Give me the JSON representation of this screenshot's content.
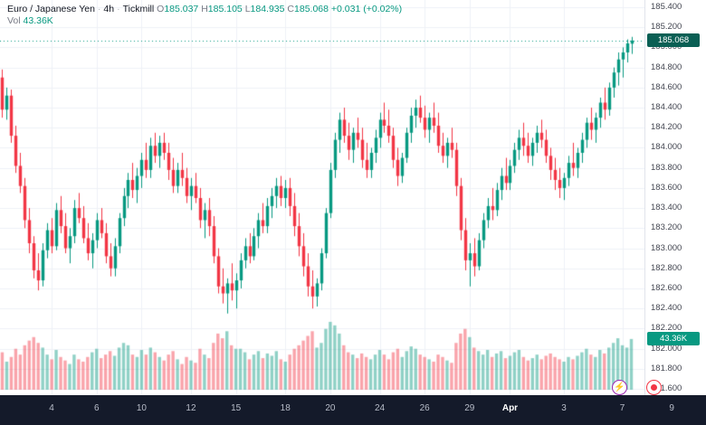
{
  "legend": {
    "symbol": "Euro / Japanese Yen",
    "sep": "·",
    "timeframe": "4h",
    "provider": "Tickmill",
    "ohlc": {
      "o_label": "O",
      "open": "185.037",
      "h_label": "H",
      "high": "185.105",
      "l_label": "L",
      "low": "184.935",
      "c_label": "C",
      "close": "185.068",
      "change": "+0.031 (+0.02%)"
    },
    "volume": {
      "label": "Vol",
      "value": "43.36K"
    }
  },
  "price_axis": {
    "labels": [
      "185.400",
      "185.200",
      "185.000",
      "184.800",
      "184.600",
      "184.400",
      "184.200",
      "184.000",
      "183.800",
      "183.600",
      "183.400",
      "183.200",
      "183.000",
      "182.800",
      "182.600",
      "182.400",
      "182.200",
      "182.000",
      "181.800",
      "181.600"
    ],
    "badge_price": "185.068",
    "badge_volume": "43.36K"
  },
  "time_axis": {
    "ticks": [
      {
        "label": "4",
        "i": 11
      },
      {
        "label": "6",
        "i": 21
      },
      {
        "label": "10",
        "i": 31
      },
      {
        "label": "12",
        "i": 42
      },
      {
        "label": "15",
        "i": 52
      },
      {
        "label": "18",
        "i": 63
      },
      {
        "label": "20",
        "i": 73
      },
      {
        "label": "24",
        "i": 84
      },
      {
        "label": "26",
        "i": 94
      },
      {
        "label": "29",
        "i": 104
      },
      {
        "label": "Apr",
        "i": 113,
        "major": true
      },
      {
        "label": "3",
        "i": 125
      },
      {
        "label": "7",
        "i": 138
      },
      {
        "label": "9",
        "i": 149
      }
    ]
  },
  "icons": {
    "flash_glyph": "⚡"
  },
  "chart_data": {
    "type": "candlestick",
    "title": "Euro / Japanese Yen",
    "timeframe": "4h",
    "provider": "Tickmill",
    "price_axis_range": [
      181.537,
      185.472
    ],
    "grid_step": 0.2,
    "last_price": 185.068,
    "last_volume_k": 43.36,
    "volume_axis_max_k": 68,
    "colors": {
      "up": "#089981",
      "down": "#f23645",
      "vol_up": "rgba(8,153,129,0.45)",
      "vol_down": "rgba(242,54,69,0.45)",
      "grid": "#eef1f7",
      "last_price_line": "#089981",
      "price_badge_bg": "#0a5f54",
      "volume_badge_bg": "#089981"
    },
    "candles_ohlcv": [
      [
        184.7,
        184.78,
        184.3,
        184.38,
        32
      ],
      [
        184.38,
        184.6,
        184.28,
        184.52,
        24
      ],
      [
        184.52,
        184.58,
        184.05,
        184.12,
        28
      ],
      [
        184.12,
        184.22,
        183.75,
        183.82,
        35
      ],
      [
        183.82,
        183.95,
        183.55,
        183.62,
        30
      ],
      [
        183.62,
        183.7,
        183.2,
        183.28,
        38
      ],
      [
        183.28,
        183.4,
        182.95,
        183.05,
        42
      ],
      [
        183.05,
        183.12,
        182.7,
        182.78,
        45
      ],
      [
        182.78,
        182.95,
        182.58,
        182.68,
        40
      ],
      [
        182.68,
        183.05,
        182.62,
        182.98,
        36
      ],
      [
        182.98,
        183.25,
        182.9,
        183.18,
        30
      ],
      [
        183.18,
        183.3,
        182.95,
        183.02,
        26
      ],
      [
        183.02,
        183.45,
        182.98,
        183.38,
        34
      ],
      [
        183.38,
        183.52,
        183.15,
        183.22,
        28
      ],
      [
        183.22,
        183.35,
        182.95,
        183.0,
        25
      ],
      [
        183.0,
        183.2,
        182.85,
        183.12,
        22
      ],
      [
        183.12,
        183.48,
        183.05,
        183.4,
        30
      ],
      [
        183.4,
        183.55,
        183.25,
        183.3,
        26
      ],
      [
        183.3,
        183.42,
        183.05,
        183.1,
        24
      ],
      [
        183.1,
        183.25,
        182.88,
        182.95,
        28
      ],
      [
        182.95,
        183.15,
        182.8,
        183.08,
        32
      ],
      [
        183.08,
        183.35,
        183.0,
        183.28,
        35
      ],
      [
        183.28,
        183.4,
        183.1,
        183.15,
        27
      ],
      [
        183.15,
        183.25,
        182.85,
        182.92,
        30
      ],
      [
        182.92,
        183.05,
        182.72,
        182.8,
        33
      ],
      [
        182.8,
        183.1,
        182.72,
        183.02,
        29
      ],
      [
        183.02,
        183.35,
        182.95,
        183.3,
        36
      ],
      [
        183.3,
        183.6,
        183.22,
        183.52,
        40
      ],
      [
        183.52,
        183.75,
        183.4,
        183.68,
        38
      ],
      [
        183.68,
        183.85,
        183.5,
        183.58,
        30
      ],
      [
        183.58,
        183.8,
        183.45,
        183.72,
        28
      ],
      [
        183.72,
        183.95,
        183.6,
        183.88,
        34
      ],
      [
        183.88,
        184.05,
        183.7,
        183.78,
        30
      ],
      [
        183.78,
        184.1,
        183.7,
        184.02,
        36
      ],
      [
        184.02,
        184.15,
        183.85,
        183.92,
        32
      ],
      [
        183.92,
        184.12,
        183.8,
        184.05,
        28
      ],
      [
        184.05,
        184.15,
        183.88,
        183.95,
        25
      ],
      [
        183.95,
        184.05,
        183.68,
        183.78,
        30
      ],
      [
        183.78,
        183.9,
        183.55,
        183.62,
        33
      ],
      [
        183.62,
        183.85,
        183.55,
        183.78,
        26
      ],
      [
        183.78,
        183.95,
        183.62,
        183.7,
        22
      ],
      [
        183.7,
        183.8,
        183.45,
        183.52,
        28
      ],
      [
        183.52,
        183.7,
        183.38,
        183.62,
        25
      ],
      [
        183.62,
        183.75,
        183.45,
        183.5,
        23
      ],
      [
        183.5,
        183.6,
        183.2,
        183.28,
        35
      ],
      [
        183.28,
        183.45,
        183.1,
        183.38,
        30
      ],
      [
        183.38,
        183.5,
        183.12,
        183.22,
        27
      ],
      [
        183.22,
        183.32,
        182.85,
        182.92,
        40
      ],
      [
        182.92,
        183.0,
        182.55,
        182.62,
        48
      ],
      [
        182.62,
        182.8,
        182.45,
        182.55,
        44
      ],
      [
        182.55,
        182.7,
        182.35,
        182.65,
        50
      ],
      [
        182.65,
        182.85,
        182.48,
        182.58,
        38
      ],
      [
        182.58,
        182.75,
        182.4,
        182.68,
        35
      ],
      [
        182.68,
        182.95,
        182.6,
        182.88,
        35
      ],
      [
        182.88,
        183.1,
        182.8,
        183.02,
        32
      ],
      [
        183.02,
        183.15,
        182.85,
        182.92,
        26
      ],
      [
        182.92,
        183.2,
        182.88,
        183.12,
        30
      ],
      [
        183.12,
        183.35,
        183.0,
        183.28,
        33
      ],
      [
        183.28,
        183.45,
        183.15,
        183.22,
        27
      ],
      [
        183.22,
        183.5,
        183.15,
        183.42,
        31
      ],
      [
        183.42,
        183.6,
        183.3,
        183.52,
        29
      ],
      [
        183.52,
        183.7,
        183.4,
        183.62,
        33
      ],
      [
        183.62,
        183.72,
        183.42,
        183.5,
        26
      ],
      [
        183.5,
        183.68,
        183.4,
        183.6,
        24
      ],
      [
        183.6,
        183.7,
        183.32,
        183.42,
        30
      ],
      [
        183.42,
        183.55,
        183.12,
        183.22,
        35
      ],
      [
        183.22,
        183.35,
        182.92,
        183.02,
        38
      ],
      [
        183.02,
        183.15,
        182.72,
        182.82,
        42
      ],
      [
        182.82,
        182.95,
        182.52,
        182.62,
        46
      ],
      [
        182.62,
        182.78,
        182.4,
        182.52,
        50
      ],
      [
        182.52,
        182.7,
        182.42,
        182.65,
        36
      ],
      [
        182.65,
        183.0,
        182.58,
        182.95,
        40
      ],
      [
        182.95,
        183.4,
        182.9,
        183.35,
        52
      ],
      [
        183.35,
        183.85,
        183.3,
        183.78,
        58
      ],
      [
        183.78,
        184.15,
        183.7,
        184.08,
        55
      ],
      [
        184.08,
        184.35,
        183.95,
        184.28,
        48
      ],
      [
        184.28,
        184.4,
        184.05,
        184.12,
        38
      ],
      [
        184.12,
        184.25,
        183.88,
        183.98,
        32
      ],
      [
        183.98,
        184.2,
        183.85,
        184.15,
        30
      ],
      [
        184.15,
        184.3,
        184.0,
        184.08,
        27
      ],
      [
        184.08,
        184.2,
        183.8,
        183.88,
        31
      ],
      [
        183.88,
        184.05,
        183.7,
        183.78,
        28
      ],
      [
        183.78,
        184.0,
        183.7,
        183.95,
        26
      ],
      [
        183.95,
        184.18,
        183.85,
        184.1,
        30
      ],
      [
        184.1,
        184.35,
        184.0,
        184.28,
        34
      ],
      [
        184.28,
        184.45,
        184.15,
        184.22,
        30
      ],
      [
        184.22,
        184.38,
        184.05,
        184.12,
        26
      ],
      [
        184.12,
        184.2,
        183.8,
        183.88,
        32
      ],
      [
        183.88,
        184.0,
        183.62,
        183.72,
        35
      ],
      [
        183.72,
        183.95,
        183.65,
        183.9,
        28
      ],
      [
        183.9,
        184.2,
        183.85,
        184.15,
        33
      ],
      [
        184.15,
        184.4,
        184.05,
        184.32,
        37
      ],
      [
        184.32,
        184.48,
        184.2,
        184.4,
        35
      ],
      [
        184.4,
        184.52,
        184.25,
        184.3,
        30
      ],
      [
        184.3,
        184.42,
        184.1,
        184.18,
        28
      ],
      [
        184.18,
        184.35,
        184.05,
        184.3,
        26
      ],
      [
        184.3,
        184.45,
        184.15,
        184.22,
        24
      ],
      [
        184.22,
        184.35,
        183.95,
        184.02,
        30
      ],
      [
        184.02,
        184.15,
        183.85,
        183.92,
        28
      ],
      [
        183.92,
        184.1,
        183.8,
        184.05,
        25
      ],
      [
        184.05,
        184.2,
        183.9,
        183.98,
        23
      ],
      [
        183.98,
        184.05,
        183.52,
        183.62,
        40
      ],
      [
        183.62,
        183.7,
        183.08,
        183.18,
        48
      ],
      [
        183.18,
        183.3,
        182.78,
        182.88,
        52
      ],
      [
        182.88,
        183.05,
        182.62,
        182.95,
        45
      ],
      [
        182.95,
        183.1,
        182.72,
        182.82,
        36
      ],
      [
        182.82,
        183.15,
        182.78,
        183.08,
        33
      ],
      [
        183.08,
        183.35,
        183.0,
        183.28,
        30
      ],
      [
        183.28,
        183.5,
        183.2,
        183.42,
        34
      ],
      [
        183.42,
        183.6,
        183.28,
        183.38,
        28
      ],
      [
        183.38,
        183.65,
        183.32,
        183.58,
        31
      ],
      [
        183.58,
        183.8,
        183.48,
        183.72,
        33
      ],
      [
        183.72,
        183.9,
        183.58,
        183.65,
        27
      ],
      [
        183.65,
        183.88,
        183.58,
        183.82,
        29
      ],
      [
        183.82,
        184.05,
        183.75,
        183.98,
        32
      ],
      [
        183.98,
        184.18,
        183.88,
        184.1,
        34
      ],
      [
        184.1,
        184.25,
        183.92,
        184.02,
        28
      ],
      [
        184.02,
        184.15,
        183.85,
        183.92,
        25
      ],
      [
        183.92,
        184.1,
        183.82,
        184.05,
        27
      ],
      [
        184.05,
        184.22,
        183.95,
        184.15,
        30
      ],
      [
        184.15,
        184.28,
        184.0,
        184.08,
        26
      ],
      [
        184.08,
        184.18,
        183.85,
        183.92,
        29
      ],
      [
        183.92,
        184.0,
        183.68,
        183.78,
        31
      ],
      [
        183.78,
        183.9,
        183.58,
        183.68,
        28
      ],
      [
        183.68,
        183.8,
        183.5,
        183.6,
        26
      ],
      [
        183.6,
        183.75,
        183.48,
        183.7,
        24
      ],
      [
        183.7,
        183.92,
        183.62,
        183.85,
        28
      ],
      [
        183.85,
        184.05,
        183.72,
        183.8,
        26
      ],
      [
        183.8,
        184.0,
        183.7,
        183.95,
        29
      ],
      [
        183.95,
        184.15,
        183.85,
        184.08,
        32
      ],
      [
        184.08,
        184.3,
        184.0,
        184.25,
        35
      ],
      [
        184.25,
        184.4,
        184.08,
        184.18,
        30
      ],
      [
        184.18,
        184.35,
        184.05,
        184.3,
        28
      ],
      [
        184.3,
        184.5,
        184.2,
        184.45,
        34
      ],
      [
        184.45,
        184.6,
        184.28,
        184.38,
        31
      ],
      [
        184.38,
        184.65,
        184.32,
        184.6,
        36
      ],
      [
        184.6,
        184.8,
        184.5,
        184.75,
        40
      ],
      [
        184.75,
        184.95,
        184.62,
        184.88,
        44
      ],
      [
        184.88,
        185.0,
        184.7,
        184.95,
        38
      ],
      [
        184.95,
        185.08,
        184.85,
        185.04,
        36
      ],
      [
        185.037,
        185.105,
        184.935,
        185.068,
        43.36
      ]
    ]
  }
}
